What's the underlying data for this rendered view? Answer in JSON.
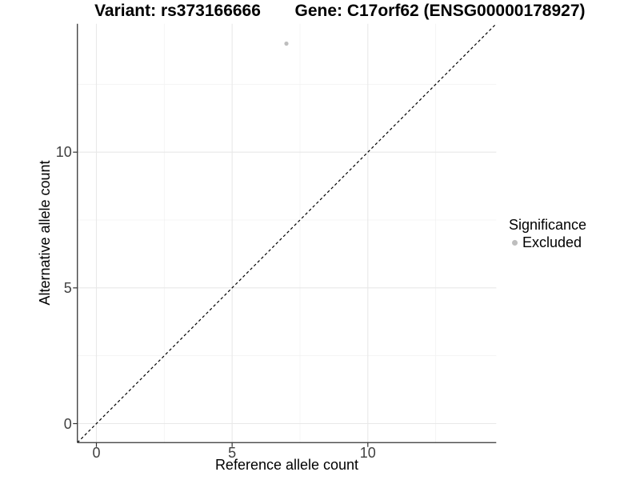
{
  "chart_data": {
    "type": "scatter",
    "titles": {
      "left": "Variant: rs373166666",
      "right": "Gene: C17orf62 (ENSG00000178927)"
    },
    "xlabel": "Reference allele count",
    "ylabel": "Alternative allele count",
    "x_ticks": [
      0,
      5,
      10
    ],
    "y_ticks": [
      0,
      5,
      10
    ],
    "x_minor_ticks": [
      2.5,
      7.5,
      12.5
    ],
    "y_minor_ticks": [
      2.5,
      7.5,
      12.5
    ],
    "xlim": [
      -0.7,
      14.73
    ],
    "ylim": [
      -0.7,
      14.73
    ],
    "grid": "major+minor",
    "points": [
      {
        "x": 7,
        "y": 14,
        "significance": "Excluded"
      }
    ],
    "identity_line": {
      "style": "dashed",
      "slope": 1,
      "intercept": 0
    },
    "legend": {
      "title": "Significance",
      "position": "right",
      "entries": [
        {
          "label": "Excluded",
          "color": "#bebebe"
        }
      ]
    }
  },
  "colors": {
    "point": "#bebebe",
    "grid_major": "#e8e8e8",
    "grid_minor": "#f2f2f2",
    "axis": "#333333",
    "identity_line": "#000000",
    "tick_text": "#404040",
    "text": "#000000"
  }
}
